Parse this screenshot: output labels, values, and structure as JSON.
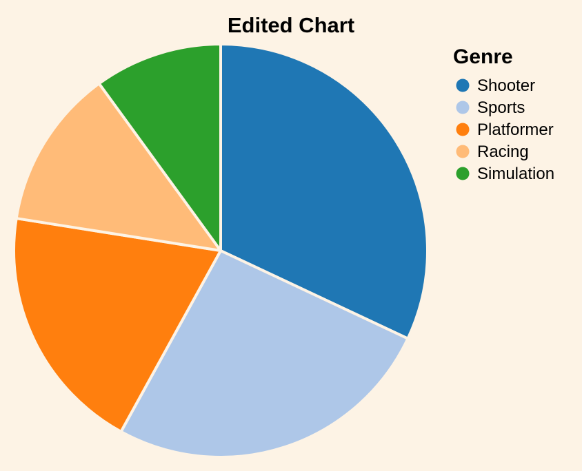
{
  "chart_data": {
    "type": "pie",
    "title": "Edited Chart",
    "legend": {
      "title": "Genre",
      "placement": "right"
    },
    "categories": [
      "Shooter",
      "Sports",
      "Platformer",
      "Racing",
      "Simulation"
    ],
    "values": [
      32,
      26,
      19.5,
      12.5,
      10
    ],
    "colors": [
      "#1f77b4",
      "#aec7e8",
      "#ff7f0e",
      "#ffbb78",
      "#2ca02c"
    ],
    "background": "#fdf3e5"
  }
}
